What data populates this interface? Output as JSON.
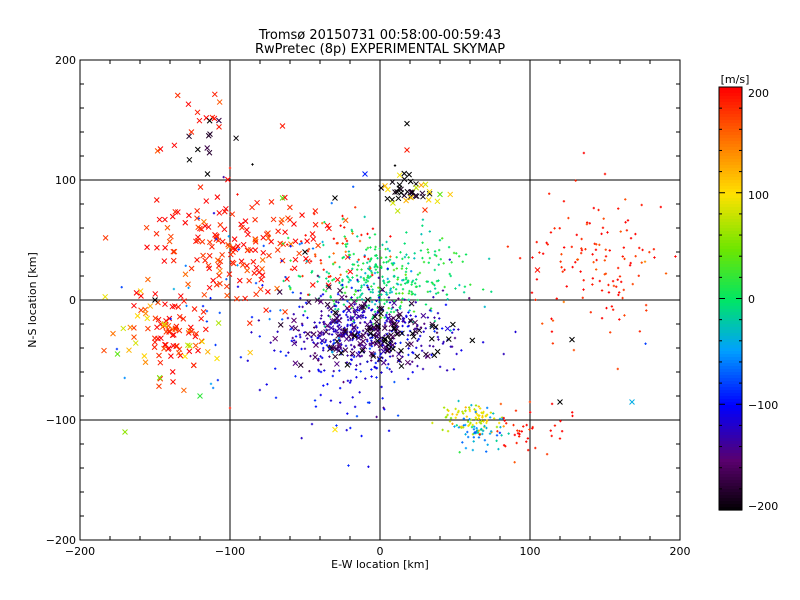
{
  "chart_data": {
    "type": "scatter",
    "title": "Tromsø 20150731 00:58:00-00:59:43",
    "subtitle": "RwPretec (8p) EXPERIMENTAL SKYMAP",
    "xlabel": "E-W location [km]",
    "ylabel": "N-S location [km]",
    "xlim": [
      -200,
      200
    ],
    "ylim": [
      -200,
      200
    ],
    "xticks": [
      "−200",
      "−100",
      "0",
      "100",
      "200"
    ],
    "yticks": [
      "200",
      "100",
      "0",
      "−100",
      "−200"
    ],
    "grid": true,
    "colorbar": {
      "label": "[m/s]",
      "range": [
        -200,
        200
      ],
      "ticks": [
        "200",
        "100",
        "0",
        "−100",
        "−200"
      ]
    },
    "clusters": [
      {
        "center": [
          -90,
          45
        ],
        "spread": [
          28,
          22
        ],
        "count": 170,
        "velocity": 190,
        "marker": "cross"
      },
      {
        "center": [
          -140,
          -30
        ],
        "spread": [
          14,
          16
        ],
        "count": 80,
        "velocity": 190,
        "marker": "cross"
      },
      {
        "center": [
          -122,
          150
        ],
        "spread": [
          12,
          12
        ],
        "count": 14,
        "velocity": 195,
        "marker": "cross"
      },
      {
        "center": [
          -118,
          138
        ],
        "spread": [
          10,
          10
        ],
        "count": 10,
        "velocity": -200,
        "marker": "cross"
      },
      {
        "center": [
          0,
          15
        ],
        "spread": [
          25,
          20
        ],
        "count": 360,
        "velocity": 0,
        "marker": "dot"
      },
      {
        "center": [
          -10,
          -28
        ],
        "spread": [
          28,
          17
        ],
        "count": 420,
        "velocity": -120,
        "marker": "dot"
      },
      {
        "center": [
          -15,
          -25
        ],
        "spread": [
          25,
          15
        ],
        "count": 120,
        "velocity": -160,
        "marker": "cross"
      },
      {
        "center": [
          10,
          -30
        ],
        "spread": [
          20,
          14
        ],
        "count": 50,
        "velocity": -200,
        "marker": "cross"
      },
      {
        "center": [
          -30,
          40
        ],
        "spread": [
          15,
          15
        ],
        "count": 45,
        "velocity": 180,
        "marker": "dot"
      },
      {
        "center": [
          20,
          90
        ],
        "spread": [
          8,
          6
        ],
        "count": 28,
        "velocity": -200,
        "marker": "cross"
      },
      {
        "center": [
          22,
          88
        ],
        "spread": [
          12,
          10
        ],
        "count": 14,
        "velocity": 100,
        "marker": "cross"
      },
      {
        "center": [
          145,
          30
        ],
        "spread": [
          22,
          28
        ],
        "count": 130,
        "velocity": 190,
        "marker": "dot"
      },
      {
        "center": [
          60,
          -100
        ],
        "spread": [
          10,
          8
        ],
        "count": 80,
        "velocity": 90,
        "marker": "dot"
      },
      {
        "center": [
          65,
          -108
        ],
        "spread": [
          8,
          8
        ],
        "count": 55,
        "velocity": -40,
        "marker": "dot"
      },
      {
        "center": [
          100,
          -110
        ],
        "spread": [
          12,
          12
        ],
        "count": 40,
        "velocity": 195,
        "marker": "dot"
      },
      {
        "center": [
          -20,
          -80
        ],
        "spread": [
          25,
          25
        ],
        "count": 50,
        "velocity": -100,
        "marker": "dot"
      },
      {
        "center": [
          -80,
          0
        ],
        "spread": [
          60,
          40
        ],
        "count": 60,
        "velocity": -80,
        "marker": "dot"
      },
      {
        "center": [
          -140,
          -20
        ],
        "spread": [
          30,
          20
        ],
        "count": 20,
        "velocity": 100,
        "marker": "cross"
      }
    ],
    "points": [
      [
        -150,
        0,
        -200,
        "cross"
      ],
      [
        -178,
        -28,
        150,
        "cross"
      ],
      [
        -175,
        -45,
        40,
        "cross"
      ],
      [
        -170,
        -110,
        60,
        "cross"
      ],
      [
        -120,
        -80,
        20,
        "cross"
      ],
      [
        -65,
        145,
        190,
        "cross"
      ],
      [
        -100,
        -90,
        190,
        "dot"
      ],
      [
        18,
        147,
        -200,
        "cross"
      ],
      [
        18,
        125,
        190,
        "cross"
      ],
      [
        -10,
        105,
        -90,
        "cross"
      ],
      [
        -30,
        85,
        -200,
        "cross"
      ],
      [
        -65,
        85,
        40,
        "cross"
      ],
      [
        40,
        88,
        40,
        "cross"
      ],
      [
        30,
        75,
        180,
        "cross"
      ],
      [
        10,
        112,
        -200,
        "dot"
      ],
      [
        -115,
        105,
        -200,
        "cross"
      ],
      [
        -85,
        113,
        -200,
        "dot"
      ],
      [
        -100,
        110,
        190,
        "dot"
      ],
      [
        120,
        -85,
        -200,
        "cross"
      ],
      [
        128,
        -33,
        -200,
        "cross"
      ],
      [
        168,
        -85,
        -40,
        "cross"
      ],
      [
        -30,
        -108,
        100,
        "cross"
      ],
      [
        -130,
        -47,
        100,
        "cross"
      ],
      [
        150,
        105,
        195,
        "dot"
      ],
      [
        -95,
        88,
        195,
        "dot"
      ],
      [
        -45,
        55,
        195,
        "cross"
      ],
      [
        105,
        25,
        195,
        "cross"
      ],
      [
        -35,
        62,
        195,
        "cross"
      ],
      [
        -25,
        70,
        195,
        "dot"
      ],
      [
        -50,
        40,
        -200,
        "cross"
      ]
    ]
  }
}
